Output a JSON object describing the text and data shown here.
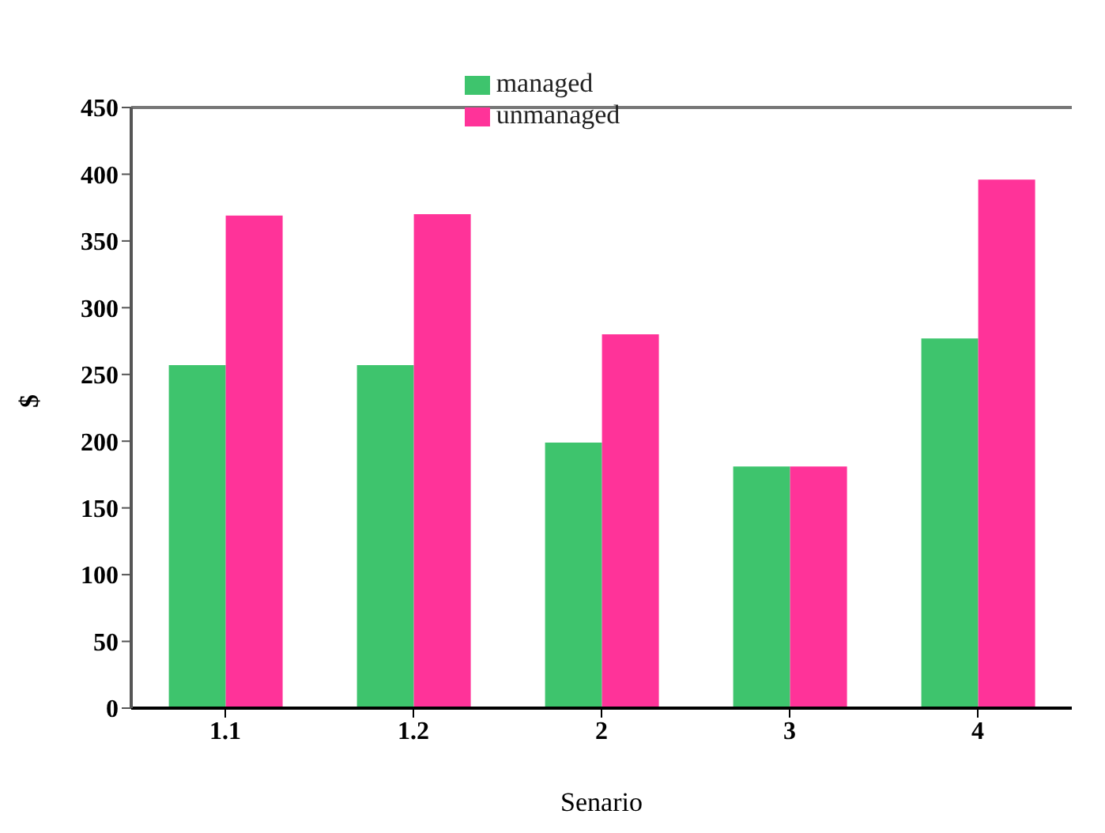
{
  "chart_data": {
    "type": "bar",
    "xlabel": "Senario",
    "ylabel": "$",
    "categories": [
      "1.1",
      "1.2",
      "2",
      "3",
      "4"
    ],
    "series": [
      {
        "name": "managed",
        "color": "#3ec46d",
        "values": [
          257,
          257,
          199,
          181,
          277
        ]
      },
      {
        "name": "unmanaged",
        "color": "#ff3399",
        "values": [
          369,
          370,
          280,
          181,
          396
        ]
      }
    ],
    "ylim": [
      0,
      450
    ],
    "yticks": [
      0,
      50,
      100,
      150,
      200,
      250,
      300,
      350,
      400,
      450
    ],
    "grid": false,
    "legend": "top"
  }
}
